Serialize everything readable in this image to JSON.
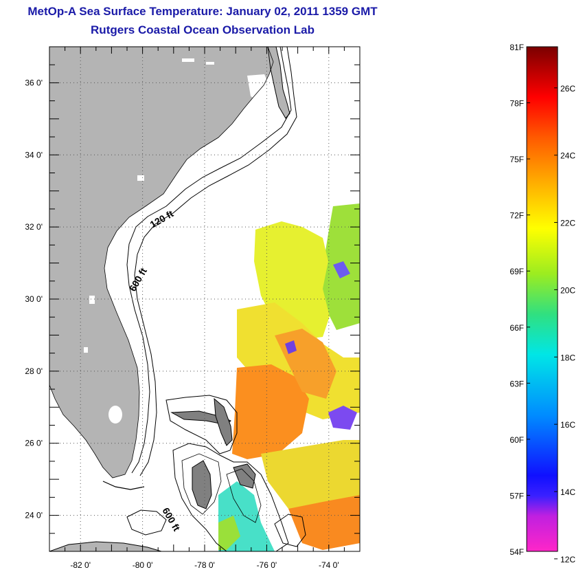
{
  "header": {
    "title": "MetOp-A Sea Surface Temperature:  January 02, 2011 1359 GMT",
    "subtitle": "Rutgers Coastal Ocean Observation Lab"
  },
  "map": {
    "lon_range": [
      -83,
      -73
    ],
    "lat_range": [
      23,
      37
    ],
    "lon_ticks": [
      -82,
      -80,
      -78,
      -76,
      -74
    ],
    "lat_ticks": [
      24,
      26,
      28,
      30,
      32,
      34,
      36
    ],
    "lon_tick_labels": [
      "-82 0'",
      "-80 0'",
      "-78 0'",
      "-76 0'",
      "-74 0'"
    ],
    "lat_tick_labels": [
      "24 0'",
      "26 0'",
      "28 0'",
      "30 0'",
      "32 0'",
      "34 0'",
      "36 0'"
    ],
    "contour_labels": [
      "120 ft",
      "600 ft",
      "600 ft"
    ],
    "colors": {
      "land": "#b4b4b4",
      "grid": "#555555"
    }
  },
  "colorbar": {
    "range_f": [
      54,
      81
    ],
    "f_labels": [
      "81F",
      "78F",
      "75F",
      "72F",
      "69F",
      "66F",
      "63F",
      "60F",
      "57F",
      "54F"
    ],
    "c_labels": [
      "26C",
      "24C",
      "22C",
      "20C",
      "18C",
      "16C",
      "14C",
      "12C"
    ],
    "colors": [
      "#ff26c8",
      "#a020e0",
      "#1a1aff",
      "#008cff",
      "#00e0e0",
      "#30e080",
      "#aaee20",
      "#ffff00",
      "#ffaa00",
      "#ff5500",
      "#ff0000",
      "#b00000",
      "#7a0000"
    ]
  }
}
